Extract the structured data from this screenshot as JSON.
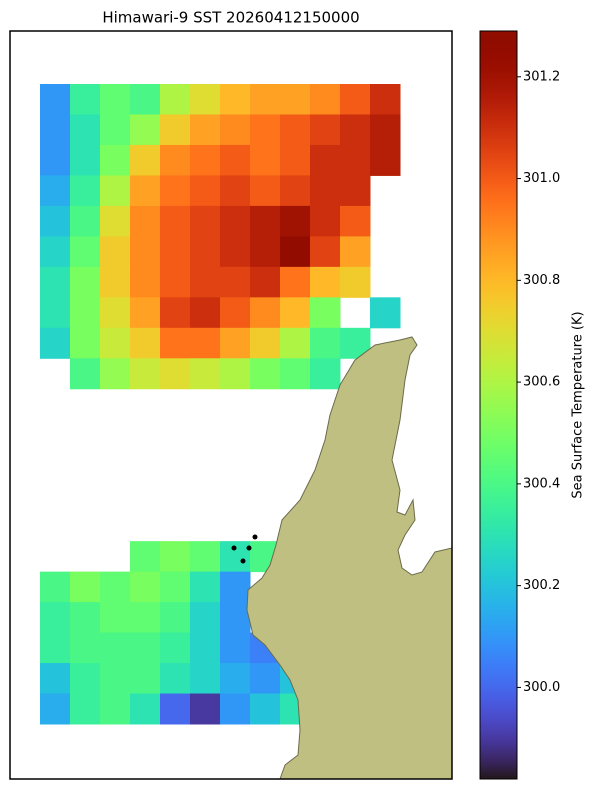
{
  "map": {
    "title": "Himawari-9 SST 20260412150000",
    "colormap": "turbo",
    "land_color": "#bfbf82",
    "sst": [
      [
        300.1,
        300.35,
        300.45,
        300.4,
        300.6,
        300.7,
        300.8,
        300.85,
        300.85,
        300.9,
        301.0,
        301.1
      ],
      [
        300.1,
        300.3,
        300.45,
        300.55,
        300.75,
        300.85,
        300.9,
        300.95,
        301.0,
        301.05,
        301.1,
        301.15
      ],
      [
        300.1,
        300.3,
        300.5,
        300.75,
        300.9,
        300.95,
        301.0,
        300.95,
        301.0,
        301.1,
        301.1,
        301.15
      ],
      [
        300.15,
        300.35,
        300.6,
        300.85,
        300.95,
        301.0,
        301.05,
        301.0,
        301.05,
        301.1,
        301.1,
        null
      ],
      [
        300.2,
        300.4,
        300.7,
        300.9,
        301.0,
        301.05,
        301.1,
        301.15,
        301.2,
        301.1,
        301.0,
        null
      ],
      [
        300.25,
        300.45,
        300.75,
        300.9,
        301.0,
        301.05,
        301.1,
        301.15,
        301.25,
        301.05,
        300.85,
        null
      ],
      [
        300.3,
        300.5,
        300.75,
        300.9,
        301.0,
        301.05,
        301.05,
        301.1,
        300.95,
        300.8,
        300.75,
        null
      ],
      [
        300.3,
        300.5,
        300.7,
        300.85,
        301.05,
        301.1,
        301.0,
        300.9,
        300.8,
        300.5,
        null,
        300.25
      ],
      [
        300.25,
        300.5,
        300.65,
        300.75,
        300.95,
        300.95,
        300.85,
        300.75,
        300.6,
        300.4,
        300.35,
        null
      ],
      [
        null,
        300.4,
        300.55,
        300.65,
        300.7,
        300.65,
        300.6,
        300.5,
        300.45,
        300.35,
        null,
        null
      ],
      [
        null,
        null,
        null,
        null,
        null,
        null,
        null,
        null,
        null,
        null,
        null,
        null
      ],
      [
        null,
        null,
        null,
        null,
        null,
        null,
        null,
        null,
        null,
        null,
        null,
        null
      ],
      [
        null,
        null,
        null,
        null,
        null,
        null,
        null,
        null,
        null,
        null,
        null,
        null
      ],
      [
        null,
        null,
        null,
        null,
        null,
        null,
        null,
        null,
        null,
        null,
        null,
        null
      ],
      [
        null,
        null,
        null,
        null,
        null,
        null,
        null,
        null,
        null,
        null,
        null,
        null
      ],
      [
        null,
        null,
        null,
        300.45,
        300.5,
        300.45,
        300.3,
        300.4,
        null,
        null,
        null,
        null
      ],
      [
        300.4,
        300.5,
        300.45,
        300.5,
        300.45,
        300.3,
        300.1,
        null,
        null,
        null,
        null,
        null
      ],
      [
        300.35,
        300.4,
        300.45,
        300.45,
        300.4,
        300.25,
        300.1,
        null,
        null,
        null,
        null,
        null
      ],
      [
        300.35,
        300.4,
        300.4,
        300.4,
        300.35,
        300.25,
        300.1,
        300.05,
        null,
        null,
        null,
        null
      ],
      [
        300.2,
        300.35,
        300.4,
        300.4,
        300.3,
        300.25,
        300.15,
        300.1,
        300.2,
        null,
        null,
        null
      ],
      [
        300.15,
        300.35,
        300.4,
        300.3,
        300.0,
        299.9,
        300.1,
        300.2,
        300.3,
        null,
        null,
        null
      ]
    ],
    "colorbar": {
      "label": "Sea Surface Temperature (K)",
      "lim": [
        299.82,
        301.29
      ],
      "ticks": [
        {
          "value": 300.0,
          "label": "300.0"
        },
        {
          "value": 300.2,
          "label": "300.2"
        },
        {
          "value": 300.4,
          "label": "300.4"
        },
        {
          "value": 300.6,
          "label": "300.6"
        },
        {
          "value": 300.8,
          "label": "300.8"
        },
        {
          "value": 301.0,
          "label": "301.0"
        },
        {
          "value": 301.2,
          "label": "301.2"
        }
      ]
    }
  }
}
